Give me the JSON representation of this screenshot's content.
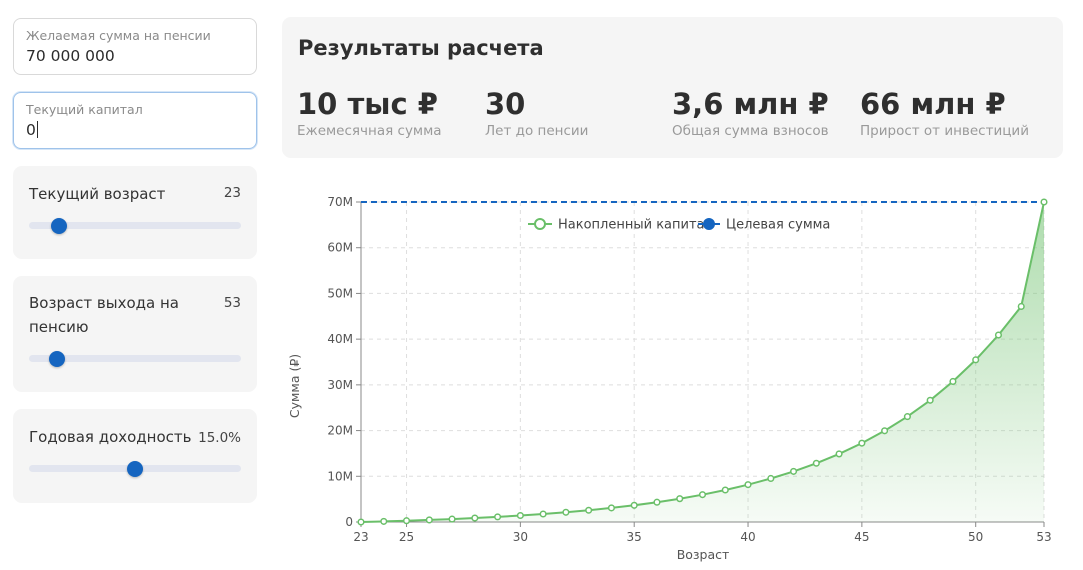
{
  "inputs": {
    "desired_sum": {
      "label": "Желаемая сумма на пенсии",
      "value": "70 000 000"
    },
    "current_capital": {
      "label": "Текущий капитал",
      "value": "0"
    }
  },
  "sliders": [
    {
      "label": "Текущий возраст",
      "value": "23",
      "fraction": 0.14
    },
    {
      "label": "Возраст выхода на пенсию",
      "value": "53",
      "fraction": 0.13
    },
    {
      "label": "Годовая доходность",
      "value": "15.0%",
      "fraction": 0.5
    }
  ],
  "results": {
    "title": "Результаты расчета",
    "stats": [
      {
        "value": "10 тыс ₽",
        "label": "Ежемесячная сумма"
      },
      {
        "value": "30",
        "label": "Лет до пенсии"
      },
      {
        "value": "3,6 млн ₽",
        "label": "Общая сумма взносов"
      },
      {
        "value": "66 млн ₽",
        "label": "Прирост от инвестиций"
      }
    ]
  },
  "colors": {
    "accent": "#1565c0",
    "series_line": "#6abf69",
    "target_line": "#1565c0"
  },
  "chart_data": {
    "type": "area",
    "xlabel": "Возраст",
    "ylabel": "Сумма (₽)",
    "xlim": [
      23,
      53
    ],
    "ylim": [
      0,
      70
    ],
    "x_ticks": [
      23,
      25,
      30,
      35,
      40,
      45,
      50,
      53
    ],
    "y_ticks": [
      0,
      10,
      20,
      30,
      40,
      50,
      60,
      70
    ],
    "y_tick_labels": [
      "0",
      "10M",
      "20M",
      "30M",
      "40M",
      "50M",
      "60M",
      "70M"
    ],
    "legend_position": "top",
    "grid": true,
    "x": [
      23,
      24,
      25,
      26,
      27,
      28,
      29,
      30,
      31,
      32,
      33,
      34,
      35,
      36,
      37,
      38,
      39,
      40,
      41,
      42,
      43,
      44,
      45,
      46,
      47,
      48,
      49,
      50,
      51,
      52,
      53
    ],
    "series": [
      {
        "name": "Накопленный капитал",
        "values": [
          0.0,
          0.13,
          0.28,
          0.45,
          0.64,
          0.87,
          1.12,
          1.42,
          1.75,
          2.13,
          2.57,
          3.08,
          3.66,
          4.33,
          5.1,
          5.98,
          7.0,
          8.17,
          9.52,
          11.07,
          12.85,
          14.89,
          17.25,
          19.95,
          23.06,
          26.63,
          30.74,
          35.47,
          40.9,
          47.15,
          70.0
        ]
      },
      {
        "name": "Целевая сумма",
        "values": [
          70,
          70,
          70,
          70,
          70,
          70,
          70,
          70,
          70,
          70,
          70,
          70,
          70,
          70,
          70,
          70,
          70,
          70,
          70,
          70,
          70,
          70,
          70,
          70,
          70,
          70,
          70,
          70,
          70,
          70,
          70
        ]
      }
    ]
  }
}
